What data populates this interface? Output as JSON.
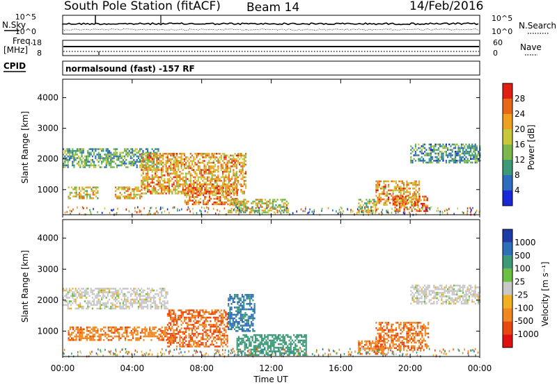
{
  "header": {
    "station": "South Pole Station (fitACF)",
    "beam": "Beam 14",
    "date": "14/Feb/2016"
  },
  "strips": {
    "nsky_label": "N.Sky",
    "nsky_ticks": [
      "10^5",
      "10^0"
    ],
    "nsky_right_ticks": [
      "10^5",
      "10^0"
    ],
    "nsearch_label": "N.Search",
    "freq_label": "Freq.",
    "freq_unit": "[MHz]",
    "freq_ticks": [
      "18",
      "8"
    ],
    "nave_ticks": [
      "60",
      "0"
    ],
    "nave_label": "Nave",
    "cpid_label": "CPID",
    "cpid_text": "normalsound (fast) -157 RF"
  },
  "colors": {
    "power": [
      "#1a28d8",
      "#2e6cc0",
      "#3c9a78",
      "#7ab84c",
      "#c8c83c",
      "#f0a020",
      "#e86818",
      "#e02010"
    ],
    "velocity": [
      "#e01010",
      "#e84810",
      "#f08820",
      "#f0b020",
      "#c8c8c8",
      "#6cc040",
      "#3c9a78",
      "#2e70b8",
      "#1e3ca8"
    ]
  },
  "chart_data": [
    {
      "type": "heatmap",
      "name": "power",
      "ylabel": "Slant Range [km]",
      "xlabel": "",
      "ylim": [
        180,
        4600
      ],
      "xlim_hours": [
        0,
        24
      ],
      "yticks": [
        "1000",
        "2000",
        "3000",
        "4000"
      ],
      "colorbar_label": "Power [dB]",
      "colorbar_ticks": [
        "4",
        "8",
        "12",
        "16",
        "20",
        "24",
        "28"
      ],
      "zlim": [
        0,
        32
      ],
      "regions": [
        {
          "t0": 0.0,
          "t1": 5.5,
          "r0": 1750,
          "r1": 2350,
          "v": 12
        },
        {
          "t0": 0.3,
          "t1": 2.0,
          "r0": 700,
          "r1": 1100,
          "v": 18
        },
        {
          "t0": 3.0,
          "t1": 4.5,
          "r0": 700,
          "r1": 1100,
          "v": 20
        },
        {
          "t0": 4.5,
          "t1": 10.5,
          "r0": 900,
          "r1": 2200,
          "v": 22
        },
        {
          "t0": 7.0,
          "t1": 10.0,
          "r0": 500,
          "r1": 1200,
          "v": 24
        },
        {
          "t0": 9.5,
          "t1": 13.0,
          "r0": 250,
          "r1": 700,
          "v": 18
        },
        {
          "t0": 17.0,
          "t1": 18.0,
          "r0": 250,
          "r1": 700,
          "v": 16
        },
        {
          "t0": 18.0,
          "t1": 20.5,
          "r0": 500,
          "r1": 1300,
          "v": 22
        },
        {
          "t0": 19.0,
          "t1": 21.0,
          "r0": 300,
          "r1": 800,
          "v": 26
        },
        {
          "t0": 20.0,
          "t1": 24.0,
          "r0": 1900,
          "r1": 2500,
          "v": 10
        }
      ]
    },
    {
      "type": "heatmap",
      "name": "velocity",
      "ylabel": "Slant Range [km]",
      "xlabel": "Time UT",
      "ylim": [
        180,
        4600
      ],
      "xlim_hours": [
        0,
        24
      ],
      "yticks": [
        "1000",
        "2000",
        "3000",
        "4000"
      ],
      "xticks": [
        "00:00",
        "04:00",
        "08:00",
        "12:00",
        "16:00",
        "20:00",
        "00:00"
      ],
      "colorbar_label": "Velocity [m s⁻¹]",
      "colorbar_ticks": [
        "-1000",
        "-500",
        "-100",
        "-25",
        "25",
        "100",
        "500",
        "1000"
      ],
      "regions": [
        {
          "t0": 0.0,
          "t1": 6.0,
          "r0": 1750,
          "r1": 2400,
          "v": 0
        },
        {
          "t0": 0.3,
          "t1": 6.0,
          "r0": 700,
          "r1": 1150,
          "v": -400
        },
        {
          "t0": 6.0,
          "t1": 9.5,
          "r0": 500,
          "r1": 1700,
          "v": -500
        },
        {
          "t0": 9.5,
          "t1": 11.0,
          "r0": 1000,
          "r1": 2200,
          "v": 600
        },
        {
          "t0": 10.0,
          "t1": 14.0,
          "r0": 250,
          "r1": 900,
          "v": 200
        },
        {
          "t0": 17.0,
          "t1": 18.5,
          "r0": 250,
          "r1": 700,
          "v": -400
        },
        {
          "t0": 18.0,
          "t1": 21.0,
          "r0": 400,
          "r1": 1300,
          "v": -450
        },
        {
          "t0": 20.0,
          "t1": 24.0,
          "r0": 1900,
          "r1": 2500,
          "v": 0
        }
      ]
    }
  ]
}
